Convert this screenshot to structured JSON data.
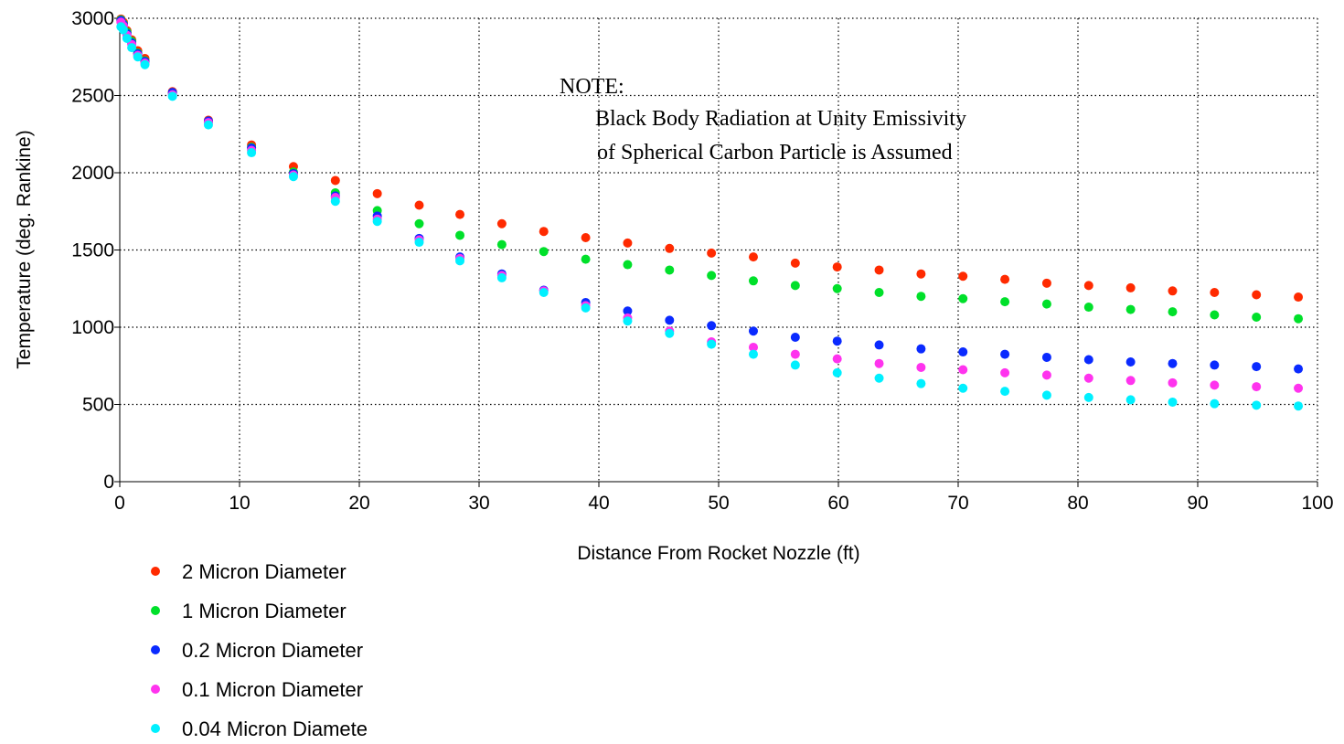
{
  "chart_data": {
    "type": "scatter",
    "xlabel": "Distance From Rocket Nozzle (ft)",
    "ylabel": "Temperature (deg. Rankine)",
    "xlim": [
      0,
      100
    ],
    "ylim": [
      0,
      3000
    ],
    "xticks": [
      0,
      10,
      20,
      30,
      40,
      50,
      60,
      70,
      80,
      90,
      100
    ],
    "yticks": [
      0,
      500,
      1000,
      1500,
      2000,
      2500,
      3000
    ],
    "grid": true,
    "legend_position": "bottom-left",
    "note": {
      "title": "NOTE:",
      "line1": "Black Body Radiation at Unity Emissivity",
      "line2": "of Spherical Carbon Particle is Assumed"
    },
    "x": [
      0.1,
      0.3,
      0.6,
      1.0,
      1.5,
      2.1,
      4.4,
      7.4,
      11,
      14.5,
      18,
      21.5,
      25,
      28.4,
      31.9,
      35.4,
      38.9,
      42.4,
      45.9,
      49.4,
      52.9,
      56.4,
      59.9,
      63.4,
      66.9,
      70.4,
      73.9,
      77.4,
      80.9,
      84.4,
      87.9,
      91.4,
      94.9,
      98.4
    ],
    "series": [
      {
        "name": "2 Micron Diameter",
        "color": "#ff2a00",
        "values": [
          2995,
          2975,
          2920,
          2860,
          2790,
          2740,
          2525,
          2340,
          2180,
          2040,
          1950,
          1865,
          1790,
          1730,
          1670,
          1620,
          1580,
          1545,
          1510,
          1480,
          1455,
          1415,
          1390,
          1370,
          1345,
          1330,
          1310,
          1285,
          1270,
          1255,
          1235,
          1225,
          1210,
          1195
        ]
      },
      {
        "name": "1 Micron Diameter",
        "color": "#00e02a",
        "values": [
          2990,
          2965,
          2910,
          2850,
          2775,
          2725,
          2515,
          2330,
          2165,
          2005,
          1870,
          1755,
          1670,
          1595,
          1535,
          1490,
          1440,
          1405,
          1370,
          1335,
          1300,
          1270,
          1250,
          1225,
          1200,
          1185,
          1165,
          1150,
          1130,
          1115,
          1100,
          1080,
          1065,
          1055
        ]
      },
      {
        "name": "0.2 Micron Diameter",
        "color": "#0a2aff",
        "values": [
          2985,
          2960,
          2900,
          2840,
          2770,
          2720,
          2520,
          2335,
          2160,
          1995,
          1850,
          1720,
          1575,
          1455,
          1345,
          1240,
          1160,
          1105,
          1045,
          1010,
          975,
          935,
          910,
          885,
          860,
          840,
          825,
          805,
          790,
          775,
          765,
          755,
          745,
          730
        ]
      },
      {
        "name": "0.1 Micron Diameter",
        "color": "#ff33ee",
        "values": [
          2975,
          2950,
          2890,
          2830,
          2760,
          2710,
          2505,
          2325,
          2145,
          1985,
          1840,
          1700,
          1565,
          1445,
          1335,
          1235,
          1140,
          1060,
          975,
          905,
          870,
          825,
          795,
          765,
          740,
          725,
          705,
          690,
          670,
          655,
          640,
          625,
          615,
          605
        ]
      },
      {
        "name": "0.04 Micron Diamete",
        "color": "#00f0ff",
        "values": [
          2945,
          2925,
          2870,
          2810,
          2750,
          2700,
          2495,
          2310,
          2130,
          1975,
          1815,
          1685,
          1550,
          1430,
          1320,
          1225,
          1125,
          1040,
          960,
          890,
          825,
          755,
          705,
          670,
          635,
          605,
          585,
          560,
          545,
          530,
          515,
          505,
          495,
          490
        ]
      }
    ]
  }
}
